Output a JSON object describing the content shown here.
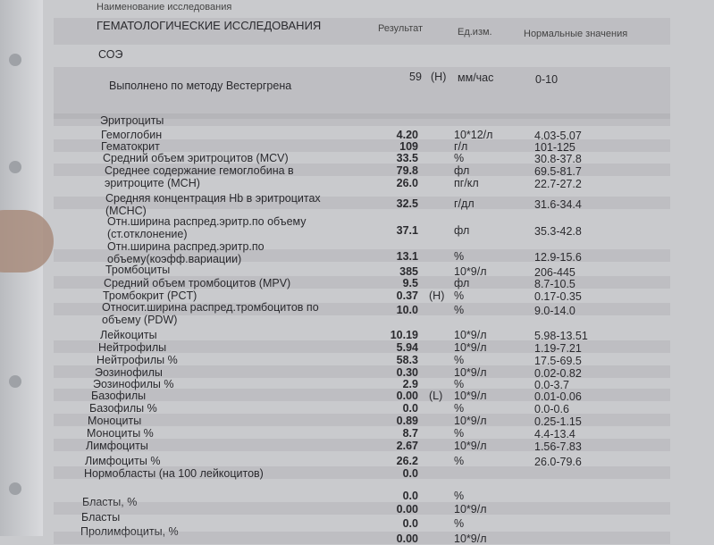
{
  "header": {
    "top_label": "Наименование исследования",
    "section": "ГЕМАТОЛОГИЧЕСКИЕ ИССЛЕДОВАНИЯ",
    "col_result": "Результат",
    "col_unit": "Ед.изм.",
    "col_normal": "Нормальные значения"
  },
  "soe": {
    "title": "СОЭ",
    "method": "Выполнено по методу Вестергрена",
    "result": "59",
    "flag": "(H)",
    "unit": "мм/час",
    "normal": "0-10"
  },
  "rows": [
    {
      "name": "Эритроциты",
      "result": "",
      "flag": "",
      "unit": "",
      "normal": ""
    },
    {
      "name": "Гемоглобин",
      "result": "4.20",
      "flag": "",
      "unit": "10*12/л",
      "normal": "4.03-5.07"
    },
    {
      "name": "Гематокрит",
      "result": "109",
      "flag": "",
      "unit": "г/л",
      "normal": "101-125"
    },
    {
      "name": "Средний объем эритроцитов (MCV)",
      "result": "33.5",
      "flag": "",
      "unit": "%",
      "normal": "30.8-37.8"
    },
    {
      "name": "Среднее содержание гемоглобина в",
      "name2": "эритроците (MCH)",
      "result": "79.8",
      "flag": "",
      "unit": "фл",
      "normal": "69.5-81.7"
    },
    {
      "name": "",
      "result": "26.0",
      "flag": "",
      "unit": "пг/кл",
      "normal": "22.7-27.2"
    },
    {
      "name": "Средняя концентрация Hb в эритроцитах",
      "name2": "(MCHC)",
      "result": "32.5",
      "flag": "",
      "unit": "г/дл",
      "normal": "31.6-34.4"
    },
    {
      "name": "Отн.ширина распред.эритр.по объему",
      "name2": "(ст.отклонение)",
      "result": "37.1",
      "flag": "",
      "unit": "фл",
      "normal": "35.3-42.8"
    },
    {
      "name": "Отн.ширина распред.эритр.по",
      "name2": "объему(коэфф.вариации)",
      "result": "13.1",
      "flag": "",
      "unit": "%",
      "normal": "12.9-15.6"
    },
    {
      "name": "Тромбоциты",
      "result": "385",
      "flag": "",
      "unit": "10*9/л",
      "normal": "206-445"
    },
    {
      "name": "Средний объем тромбоцитов (MPV)",
      "result": "9.5",
      "flag": "",
      "unit": "фл",
      "normal": "8.7-10.5"
    },
    {
      "name": "Тромбокрит (PCT)",
      "result": "0.37",
      "flag": "(H)",
      "unit": "%",
      "normal": "0.17-0.35"
    },
    {
      "name": "Относит.ширина распред.тромбоцитов по",
      "name2": "объему (PDW)",
      "result": "10.0",
      "flag": "",
      "unit": "%",
      "normal": "9.0-14.0"
    },
    {
      "name": "Лейкоциты",
      "result": "10.19",
      "flag": "",
      "unit": "10*9/л",
      "normal": "5.98-13.51"
    },
    {
      "name": "Нейтрофилы",
      "result": "5.94",
      "flag": "",
      "unit": "10*9/л",
      "normal": "1.19-7.21"
    },
    {
      "name": "Нейтрофилы %",
      "result": "58.3",
      "flag": "",
      "unit": "%",
      "normal": "17.5-69.5"
    },
    {
      "name": "Эозинофилы",
      "result": "0.30",
      "flag": "",
      "unit": "10*9/л",
      "normal": "0.02-0.82"
    },
    {
      "name": "Эозинофилы %",
      "result": "2.9",
      "flag": "",
      "unit": "%",
      "normal": "0.0-3.7"
    },
    {
      "name": "Базофилы",
      "result": "0.00",
      "flag": "(L)",
      "unit": "10*9/л",
      "normal": "0.01-0.06"
    },
    {
      "name": "Базофилы %",
      "result": "0.0",
      "flag": "",
      "unit": "%",
      "normal": "0.0-0.6"
    },
    {
      "name": "Моноциты",
      "result": "0.89",
      "flag": "",
      "unit": "10*9/л",
      "normal": "0.25-1.15"
    },
    {
      "name": "Моноциты %",
      "result": "8.7",
      "flag": "",
      "unit": "%",
      "normal": "4.4-13.4"
    },
    {
      "name": "Лимфоциты",
      "result": "2.67",
      "flag": "",
      "unit": "10*9/л",
      "normal": "1.56-7.83"
    },
    {
      "name": "Лимфоциты %",
      "result": "26.2",
      "flag": "",
      "unit": "%",
      "normal": "26.0-79.6"
    },
    {
      "name": "Нормобласты (на 100 лейкоцитов)",
      "result": "0.0",
      "flag": "",
      "unit": "",
      "normal": ""
    },
    {
      "name": "Бласты, %",
      "result": "0.0",
      "flag": "",
      "unit": "%",
      "normal": ""
    },
    {
      "name": "Бласты",
      "result": "0.00",
      "flag": "",
      "unit": "10*9/л",
      "normal": ""
    },
    {
      "name": "Пролимфоциты, %",
      "result": "0.0",
      "flag": "",
      "unit": "%",
      "normal": ""
    },
    {
      "name": "",
      "result": "0.00",
      "flag": "",
      "unit": "10*9/л",
      "normal": ""
    }
  ]
}
